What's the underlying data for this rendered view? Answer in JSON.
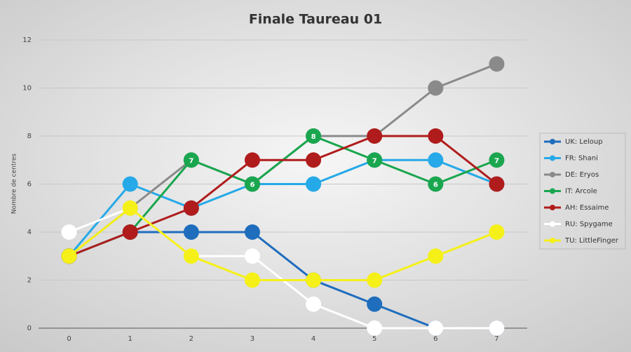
{
  "chart_data": {
    "type": "line",
    "title": "Finale Taureau 01",
    "y_label": "Nombre de centres",
    "x": [
      0,
      1,
      2,
      3,
      4,
      5,
      6,
      7
    ],
    "xlim": [
      -0.5,
      7.5
    ],
    "xticks": [
      0,
      1,
      2,
      3,
      4,
      5,
      6,
      7
    ],
    "ylim": [
      0,
      12
    ],
    "yticks": [
      0,
      2,
      4,
      6,
      8,
      10,
      12
    ],
    "grid": true,
    "legend": "right",
    "series": [
      {
        "name": "UK: Leloup",
        "color": "#1f6dbd",
        "values": [
          3,
          4,
          4,
          4,
          2,
          1,
          0,
          0
        ]
      },
      {
        "name": "FR: Shani",
        "color": "#25a9e8",
        "values": [
          3,
          6,
          5,
          6,
          6,
          7,
          7,
          6
        ]
      },
      {
        "name": "DE: Eryos",
        "color": "#8a8a8a",
        "values": [
          3,
          5,
          7,
          6,
          8,
          8,
          10,
          11
        ]
      },
      {
        "name": "IT: Arcole",
        "color": "#1aa64f",
        "values": [
          3,
          4,
          7,
          6,
          8,
          7,
          6,
          7
        ],
        "data_labels": true
      },
      {
        "name": "AH: Essaime",
        "color": "#b01c1c",
        "values": [
          3,
          4,
          5,
          7,
          7,
          8,
          8,
          6
        ]
      },
      {
        "name": "RU: Spygame",
        "color": "#ffffff",
        "values": [
          4,
          5,
          3,
          3,
          1,
          0,
          0,
          0
        ]
      },
      {
        "name": "TU: LittleFinger",
        "color": "#f5f018",
        "values": [
          3,
          5,
          3,
          2,
          2,
          2,
          3,
          4
        ]
      }
    ]
  }
}
